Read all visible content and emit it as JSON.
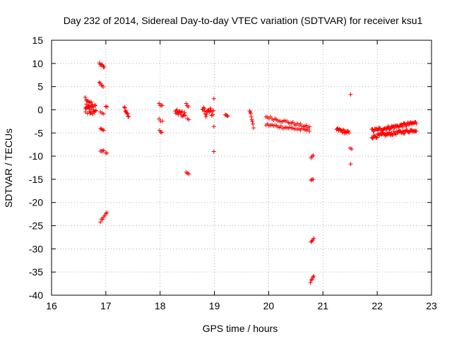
{
  "chart_data": {
    "type": "scatter",
    "title": "Day 232 of 2014, Sidereal Day-to-day VTEC variation (SDTVAR) for receiver ksu1",
    "xlabel": "GPS time / hours",
    "ylabel": "SDTVAR / TECUs",
    "xlim": [
      16,
      23
    ],
    "ylim": [
      -40,
      15
    ],
    "x_ticks": [
      16,
      17,
      18,
      19,
      20,
      21,
      22,
      23
    ],
    "x_tick_labels": [
      "16",
      "17",
      "18",
      "19",
      "20",
      "21",
      "22",
      "23"
    ],
    "y_ticks": [
      15,
      10,
      5,
      0,
      -5,
      -10,
      -15,
      -20,
      -25,
      -30,
      -35,
      -40
    ],
    "y_tick_labels": [
      "15",
      "10",
      "5",
      "0",
      "-5",
      "-10",
      "-15",
      "-20",
      "-25",
      "-30",
      "-35",
      "-40"
    ],
    "grid": true,
    "marker": "+",
    "color": "#ff0000",
    "point_groups": [
      {
        "x0": 16.62,
        "x1": 16.82,
        "y0": 0.0,
        "y1": 0.0,
        "n": 30,
        "jitter": 1.2
      },
      {
        "x0": 16.62,
        "x1": 16.75,
        "y0": 2.5,
        "y1": 1.2,
        "n": 8,
        "jitter": 0.3
      },
      {
        "x0": 16.88,
        "x1": 16.97,
        "y0": 10.0,
        "y1": 9.2,
        "n": 7,
        "jitter": 0.2
      },
      {
        "x0": 16.88,
        "x1": 16.95,
        "y0": 5.8,
        "y1": 5.1,
        "n": 5,
        "jitter": 0.2
      },
      {
        "x0": 16.9,
        "x1": 16.96,
        "y0": -0.5,
        "y1": -0.9,
        "n": 3,
        "jitter": 0.1
      },
      {
        "x0": 16.9,
        "x1": 16.96,
        "y0": -4.0,
        "y1": -4.4,
        "n": 4,
        "jitter": 0.1
      },
      {
        "x0": 16.9,
        "x1": 16.96,
        "y0": -9.0,
        "y1": -8.7,
        "n": 4,
        "jitter": 0.1
      },
      {
        "x0": 16.9,
        "x1": 17.02,
        "y0": -24.0,
        "y1": -22.0,
        "n": 7,
        "jitter": 0.3
      },
      {
        "x0": 17.0,
        "x1": 17.02,
        "y0": 0.7,
        "y1": 0.6,
        "n": 2,
        "jitter": 0.1
      },
      {
        "x0": 17.0,
        "x1": 17.02,
        "y0": -9.3,
        "y1": -9.4,
        "n": 2,
        "jitter": 0.1
      },
      {
        "x0": 17.34,
        "x1": 17.42,
        "y0": 0.5,
        "y1": -1.5,
        "n": 9,
        "jitter": 0.4
      },
      {
        "x0": 17.98,
        "x1": 18.04,
        "y0": 1.2,
        "y1": 0.8,
        "n": 4,
        "jitter": 0.2
      },
      {
        "x0": 17.98,
        "x1": 18.04,
        "y0": -2.0,
        "y1": -2.5,
        "n": 3,
        "jitter": 0.2
      },
      {
        "x0": 17.99,
        "x1": 18.03,
        "y0": -4.5,
        "y1": -5.0,
        "n": 3,
        "jitter": 0.2
      },
      {
        "x0": 18.28,
        "x1": 18.46,
        "y0": -0.5,
        "y1": -1.0,
        "n": 18,
        "jitter": 0.6
      },
      {
        "x0": 18.48,
        "x1": 18.52,
        "y0": 1.3,
        "y1": 0.6,
        "n": 3,
        "jitter": 0.1
      },
      {
        "x0": 18.5,
        "x1": 18.53,
        "y0": -1.9,
        "y1": -2.1,
        "n": 2,
        "jitter": 0.1
      },
      {
        "x0": 18.48,
        "x1": 18.53,
        "y0": -13.4,
        "y1": -13.9,
        "n": 3,
        "jitter": 0.1
      },
      {
        "x0": 18.78,
        "x1": 18.98,
        "y0": -0.5,
        "y1": -0.5,
        "n": 20,
        "jitter": 1.0
      },
      {
        "x0": 18.99,
        "x1": 19.0,
        "y0": 2.4,
        "y1": 2.4,
        "n": 1,
        "jitter": 0.0
      },
      {
        "x0": 18.99,
        "x1": 19.0,
        "y0": -3.6,
        "y1": -3.6,
        "n": 1,
        "jitter": 0.0
      },
      {
        "x0": 18.99,
        "x1": 19.0,
        "y0": -9.0,
        "y1": -9.0,
        "n": 1,
        "jitter": 0.0
      },
      {
        "x0": 19.2,
        "x1": 19.25,
        "y0": -1.0,
        "y1": -1.3,
        "n": 4,
        "jitter": 0.2
      },
      {
        "x0": 19.65,
        "x1": 19.72,
        "y0": 0.0,
        "y1": -3.8,
        "n": 8,
        "jitter": 0.3
      },
      {
        "x0": 19.95,
        "x1": 20.75,
        "y0": -1.5,
        "y1": -3.8,
        "n": 30,
        "jitter": 0.3
      },
      {
        "x0": 19.95,
        "x1": 20.75,
        "y0": -3.2,
        "y1": -4.5,
        "n": 30,
        "jitter": 0.3
      },
      {
        "x0": 20.78,
        "x1": 20.82,
        "y0": -10.3,
        "y1": -9.8,
        "n": 3,
        "jitter": 0.1
      },
      {
        "x0": 20.78,
        "x1": 20.82,
        "y0": -15.3,
        "y1": -14.9,
        "n": 3,
        "jitter": 0.1
      },
      {
        "x0": 20.78,
        "x1": 20.83,
        "y0": -28.5,
        "y1": -27.8,
        "n": 4,
        "jitter": 0.1
      },
      {
        "x0": 20.77,
        "x1": 20.83,
        "y0": -37.2,
        "y1": -36.0,
        "n": 5,
        "jitter": 0.2
      },
      {
        "x0": 21.25,
        "x1": 21.48,
        "y0": -4.2,
        "y1": -5.0,
        "n": 18,
        "jitter": 0.4
      },
      {
        "x0": 21.51,
        "x1": 21.52,
        "y0": 3.3,
        "y1": 3.3,
        "n": 1,
        "jitter": 0.0
      },
      {
        "x0": 21.5,
        "x1": 21.53,
        "y0": -8.2,
        "y1": -8.4,
        "n": 2,
        "jitter": 0.1
      },
      {
        "x0": 21.51,
        "x1": 21.52,
        "y0": -11.7,
        "y1": -11.7,
        "n": 1,
        "jitter": 0.0
      },
      {
        "x0": 21.9,
        "x1": 22.72,
        "y0": -4.5,
        "y1": -2.8,
        "n": 60,
        "jitter": 0.4
      },
      {
        "x0": 21.9,
        "x1": 22.72,
        "y0": -5.8,
        "y1": -4.3,
        "n": 60,
        "jitter": 0.4
      }
    ]
  }
}
